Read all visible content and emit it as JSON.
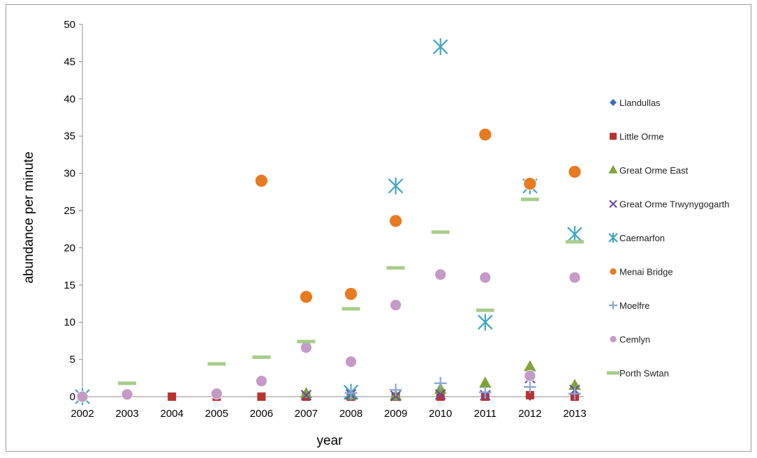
{
  "chart_data": {
    "type": "scatter",
    "title": "",
    "xlabel": "year",
    "ylabel": "abundance per minute",
    "x_categories": [
      "2002",
      "2003",
      "2004",
      "2005",
      "2006",
      "2007",
      "2008",
      "2009",
      "2010",
      "2011",
      "2012",
      "2013"
    ],
    "yticks": [
      "0",
      "5",
      "10",
      "15",
      "20",
      "25",
      "30",
      "35",
      "40",
      "45",
      "50"
    ],
    "ylim": [
      0,
      50
    ],
    "grid": false,
    "legend_position": "right",
    "series": [
      {
        "name": "Llandullas",
        "marker": "diamond",
        "color": "#3c6fb6",
        "points": [
          [
            2010,
            0
          ],
          [
            2011,
            0
          ],
          [
            2012,
            0
          ],
          [
            2013,
            0
          ]
        ]
      },
      {
        "name": "Little Orme",
        "marker": "square",
        "color": "#b83232",
        "points": [
          [
            2004,
            0
          ],
          [
            2005,
            0
          ],
          [
            2006,
            0
          ],
          [
            2007,
            0
          ],
          [
            2008,
            0
          ],
          [
            2009,
            0
          ],
          [
            2010,
            0
          ],
          [
            2011,
            0
          ],
          [
            2012,
            0.2
          ],
          [
            2013,
            0
          ]
        ]
      },
      {
        "name": "Great Orme East",
        "marker": "triangle",
        "color": "#7fa43a",
        "points": [
          [
            2007,
            0.4
          ],
          [
            2008,
            0.2
          ],
          [
            2009,
            0.1
          ],
          [
            2010,
            1.0
          ],
          [
            2011,
            1.8
          ],
          [
            2012,
            4.0
          ],
          [
            2013,
            1.5
          ]
        ]
      },
      {
        "name": "Great Orme Trwynygogarth",
        "marker": "x",
        "color": "#6a4c9c",
        "points": [
          [
            2007,
            0.2
          ],
          [
            2008,
            0.3
          ],
          [
            2009,
            0.1
          ],
          [
            2010,
            0.3
          ],
          [
            2011,
            0.2
          ],
          [
            2012,
            2.5
          ],
          [
            2013,
            0.9
          ]
        ]
      },
      {
        "name": "Caernarfon",
        "marker": "asterisk",
        "color": "#3fa6c0",
        "points": [
          [
            2002,
            0
          ],
          [
            2008,
            0.6
          ],
          [
            2009,
            28.3
          ],
          [
            2010,
            47.0
          ],
          [
            2011,
            10.0
          ],
          [
            2012,
            28.3
          ],
          [
            2013,
            21.8
          ]
        ]
      },
      {
        "name": "Menai Bridge",
        "marker": "circle",
        "color": "#e87a1f",
        "points": [
          [
            2006,
            29.0
          ],
          [
            2007,
            13.4
          ],
          [
            2008,
            13.8
          ],
          [
            2009,
            23.6
          ],
          [
            2011,
            35.2
          ],
          [
            2012,
            28.6
          ],
          [
            2013,
            30.2
          ]
        ]
      },
      {
        "name": "Moelfre",
        "marker": "plus",
        "color": "#8aa6d2",
        "points": [
          [
            2008,
            0.5
          ],
          [
            2009,
            0.9
          ],
          [
            2010,
            1.8
          ],
          [
            2011,
            0.6
          ],
          [
            2012,
            1.3
          ],
          [
            2013,
            0.4
          ]
        ]
      },
      {
        "name": "Cemlyn",
        "marker": "circle",
        "color": "#c49ac6",
        "points": [
          [
            2002,
            0
          ],
          [
            2003,
            0.3
          ],
          [
            2005,
            0.4
          ],
          [
            2006,
            2.1
          ],
          [
            2007,
            6.6
          ],
          [
            2008,
            4.7
          ],
          [
            2009,
            12.3
          ],
          [
            2010,
            16.4
          ],
          [
            2011,
            16.0
          ],
          [
            2012,
            2.8
          ],
          [
            2013,
            16.0
          ]
        ]
      },
      {
        "name": "Porth Swtan",
        "marker": "dash",
        "color": "#a8cc8a",
        "points": [
          [
            2003,
            1.8
          ],
          [
            2005,
            4.4
          ],
          [
            2006,
            5.3
          ],
          [
            2007,
            7.4
          ],
          [
            2008,
            11.8
          ],
          [
            2009,
            17.3
          ],
          [
            2010,
            22.1
          ],
          [
            2011,
            11.6
          ],
          [
            2012,
            26.5
          ],
          [
            2013,
            20.8
          ]
        ]
      }
    ]
  }
}
